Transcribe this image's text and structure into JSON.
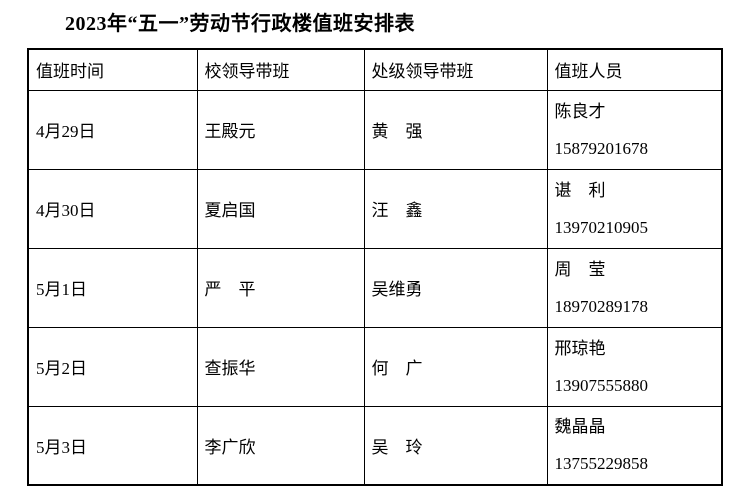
{
  "title": "2023年“五一”劳动节行政楼值班安排表",
  "colors": {
    "background": "#ffffff",
    "text": "#000000",
    "border": "#000000"
  },
  "table": {
    "headers": [
      "值班时间",
      "校领导带班",
      "处级领导带班",
      "值班人员"
    ],
    "rows": [
      {
        "date": "4月29日",
        "school_leader": "王殿元",
        "dept_leader": "黄　强",
        "staff_name": "陈良才",
        "staff_phone": "15879201678"
      },
      {
        "date": "4月30日",
        "school_leader": "夏启国",
        "dept_leader": "汪　鑫",
        "staff_name": "谌　利",
        "staff_phone": "13970210905"
      },
      {
        "date": "5月1日",
        "school_leader": "严　平",
        "dept_leader": "吴维勇",
        "staff_name": "周　莹",
        "staff_phone": "18970289178"
      },
      {
        "date": "5月2日",
        "school_leader": "查振华",
        "dept_leader": "何　广",
        "staff_name": "邢琼艳",
        "staff_phone": "13907555880"
      },
      {
        "date": "5月3日",
        "school_leader": "李广欣",
        "dept_leader": "吴　玲",
        "staff_name": "魏晶晶",
        "staff_phone": "13755229858"
      }
    ]
  }
}
